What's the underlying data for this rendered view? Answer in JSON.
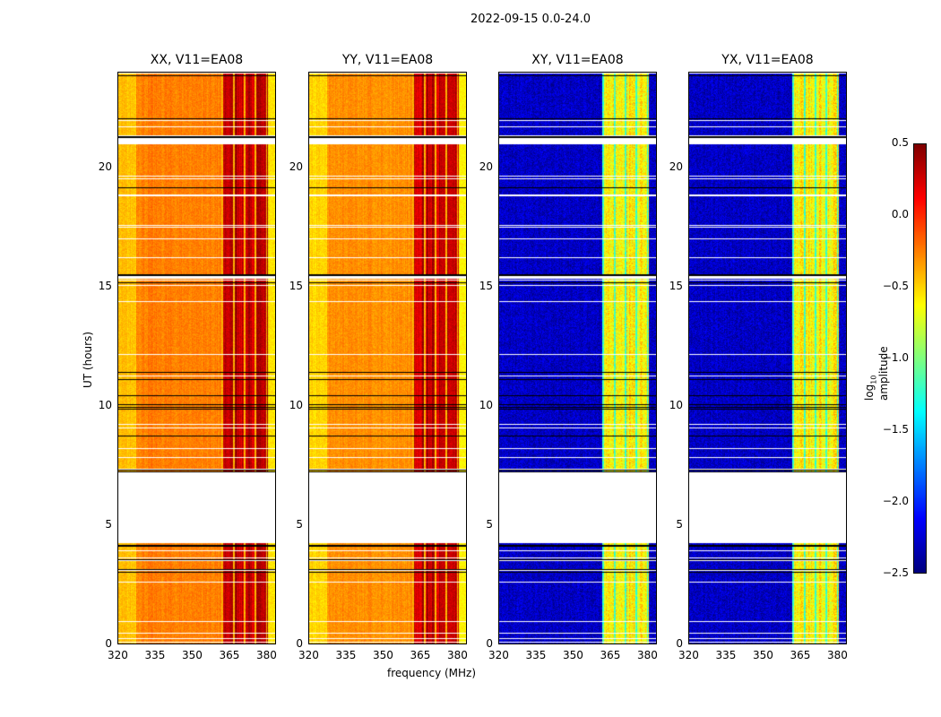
{
  "chart_data": {
    "type": "heatmap",
    "title": "2022-09-15 0.0-24.0",
    "xlabel": "frequency (MHz)",
    "ylabel": "UT (hours)",
    "xlim": [
      320,
      384
    ],
    "ylim": [
      0,
      24
    ],
    "xticks": [
      "320",
      "335",
      "350",
      "365",
      "380"
    ],
    "yticks": [
      "0",
      "5",
      "10",
      "15",
      "20"
    ],
    "panels": [
      {
        "title": "XX, V11=EA08",
        "base_log_amp": -0.25,
        "band_log_amp": 0.3
      },
      {
        "title": "YY, V11=EA08",
        "base_log_amp": -0.3,
        "band_log_amp": 0.3
      },
      {
        "title": "XY, V11=EA08",
        "base_log_amp": -2.3,
        "band_log_amp": -0.6
      },
      {
        "title": "YX, V11=EA08",
        "base_log_amp": -2.3,
        "band_log_amp": -0.6
      }
    ],
    "bright_band_mhz": [
      362,
      381
    ],
    "flagged_ut_hours": [
      [
        4.3,
        7.3
      ],
      [
        21.0,
        21.3
      ],
      [
        15.4,
        15.5
      ]
    ],
    "colorbar": {
      "label": "log10 amplitude",
      "label_main": "log",
      "label_sub": "10",
      "label_rest": " amplitude",
      "range": [
        -2.5,
        0.5
      ],
      "ticks": [
        "0.5",
        "0.0",
        "−0.5",
        "−1.0",
        "−1.5",
        "−2.0",
        "−2.5"
      ],
      "colormap": "jet"
    }
  }
}
